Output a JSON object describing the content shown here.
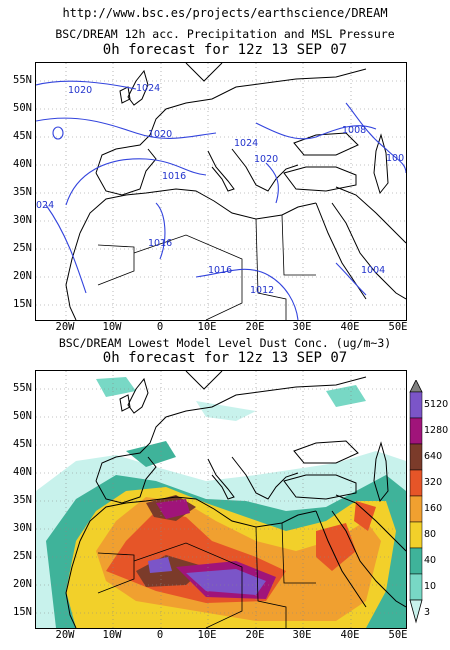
{
  "header": {
    "url": "http://www.bsc.es/projects/earthscience/DREAM"
  },
  "panel_top": {
    "title": "BSC/DREAM 12h acc. Precipitation and MSL Pressure",
    "subtitle": "0h forecast for 12z 13 SEP 07",
    "isobar_labels": [
      "1020",
      "1024",
      "1020",
      "1024",
      "1020",
      "1016",
      "1016",
      "1016",
      "1012",
      "1008",
      "1004",
      "100",
      "024"
    ]
  },
  "panel_bottom": {
    "title": "BSC/DREAM Lowest Model Level Dust Conc. (ug/m~3)",
    "subtitle": "0h forecast for 12z 13 SEP 07"
  },
  "axes": {
    "lat_labels": [
      "55N",
      "50N",
      "45N",
      "40N",
      "35N",
      "30N",
      "25N",
      "20N",
      "15N"
    ],
    "lon_labels": [
      "20W",
      "10W",
      "0",
      "10E",
      "20E",
      "30E",
      "40E",
      "50E"
    ]
  },
  "colorbar": {
    "levels": [
      "5120",
      "1280",
      "640",
      "320",
      "160",
      "80",
      "40",
      "10",
      "3"
    ],
    "colors": [
      "#7b55c8",
      "#a0147a",
      "#7b3b2a",
      "#e65528",
      "#f0a030",
      "#f2d02a",
      "#3fb39a",
      "#78d8c5",
      "#c8f2ec"
    ]
  },
  "colors": {
    "isobar": "#3344dd",
    "coast": "#000000",
    "grid": "#888888"
  }
}
